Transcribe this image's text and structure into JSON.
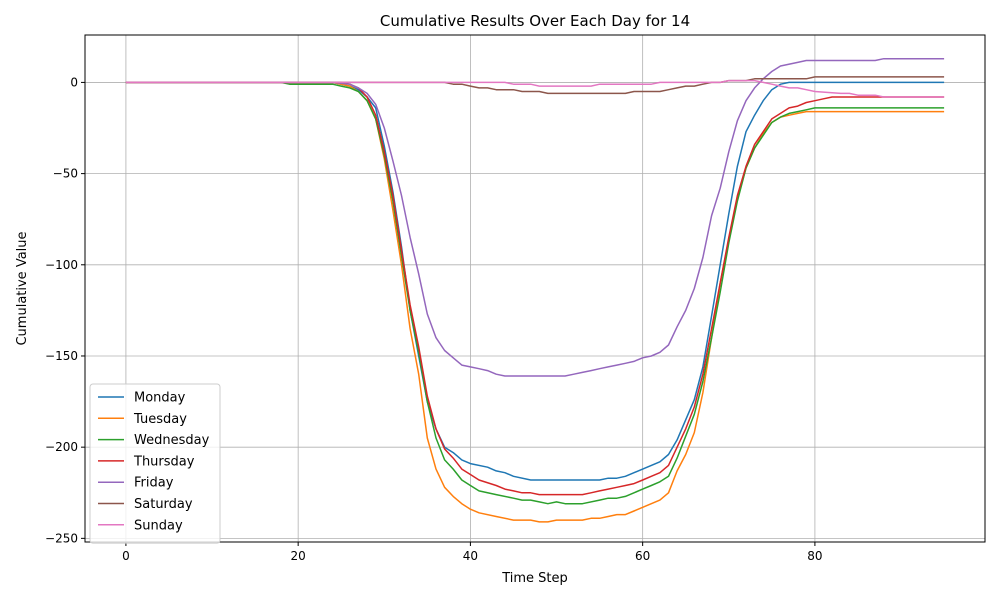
{
  "chart_data": {
    "type": "line",
    "title": "Cumulative Results Over Each Day for 14",
    "xlabel": "Time Step",
    "ylabel": "Cumulative Value",
    "xlim": [
      -4.75,
      99.75
    ],
    "ylim": [
      -252,
      26
    ],
    "xticks": [
      0,
      20,
      40,
      60,
      80
    ],
    "yticks": [
      0,
      -50,
      -100,
      -150,
      -200,
      -250
    ],
    "grid": true,
    "legend_position": "lower-left",
    "series": [
      {
        "name": "Monday",
        "color": "#1f77b4",
        "points": [
          [
            0,
            0
          ],
          [
            18,
            0
          ],
          [
            24,
            0
          ],
          [
            26,
            -2
          ],
          [
            27,
            -4
          ],
          [
            28,
            -8
          ],
          [
            29,
            -14
          ],
          [
            30,
            -35
          ],
          [
            31,
            -60
          ],
          [
            32,
            -90
          ],
          [
            33,
            -125
          ],
          [
            34,
            -150
          ],
          [
            35,
            -175
          ],
          [
            36,
            -190
          ],
          [
            37,
            -200
          ],
          [
            38,
            -203
          ],
          [
            39,
            -207
          ],
          [
            40,
            -209
          ],
          [
            42,
            -211
          ],
          [
            43,
            -213
          ],
          [
            44,
            -214
          ],
          [
            45,
            -216
          ],
          [
            47,
            -218
          ],
          [
            55,
            -218
          ],
          [
            56,
            -217
          ],
          [
            57,
            -217
          ],
          [
            58,
            -216
          ],
          [
            59,
            -214
          ],
          [
            60,
            -212
          ],
          [
            61,
            -210
          ],
          [
            62,
            -208
          ],
          [
            63,
            -204
          ],
          [
            64,
            -196
          ],
          [
            65,
            -185
          ],
          [
            66,
            -174
          ],
          [
            67,
            -156
          ],
          [
            68,
            -128
          ],
          [
            69,
            -100
          ],
          [
            70,
            -72
          ],
          [
            71,
            -46
          ],
          [
            72,
            -27
          ],
          [
            73,
            -18
          ],
          [
            74,
            -10
          ],
          [
            75,
            -4
          ],
          [
            76,
            -1
          ],
          [
            77,
            0
          ],
          [
            95,
            0
          ]
        ]
      },
      {
        "name": "Tuesday",
        "color": "#ff7f0e",
        "points": [
          [
            0,
            0
          ],
          [
            18,
            0
          ],
          [
            24,
            0
          ],
          [
            26,
            -2
          ],
          [
            27,
            -5
          ],
          [
            28,
            -10
          ],
          [
            29,
            -20
          ],
          [
            30,
            -42
          ],
          [
            31,
            -70
          ],
          [
            32,
            -100
          ],
          [
            33,
            -135
          ],
          [
            34,
            -160
          ],
          [
            35,
            -195
          ],
          [
            36,
            -212
          ],
          [
            37,
            -222
          ],
          [
            38,
            -227
          ],
          [
            39,
            -231
          ],
          [
            40,
            -234
          ],
          [
            41,
            -236
          ],
          [
            43,
            -238
          ],
          [
            45,
            -240
          ],
          [
            47,
            -240
          ],
          [
            48,
            -241
          ],
          [
            49,
            -241
          ],
          [
            50,
            -240
          ],
          [
            53,
            -240
          ],
          [
            54,
            -239
          ],
          [
            55,
            -239
          ],
          [
            56,
            -238
          ],
          [
            57,
            -237
          ],
          [
            58,
            -237
          ],
          [
            59,
            -235
          ],
          [
            60,
            -233
          ],
          [
            61,
            -231
          ],
          [
            62,
            -229
          ],
          [
            63,
            -225
          ],
          [
            64,
            -213
          ],
          [
            65,
            -204
          ],
          [
            66,
            -192
          ],
          [
            67,
            -170
          ],
          [
            68,
            -140
          ],
          [
            69,
            -110
          ],
          [
            70,
            -86
          ],
          [
            71,
            -64
          ],
          [
            72,
            -47
          ],
          [
            73,
            -36
          ],
          [
            74,
            -28
          ],
          [
            75,
            -22
          ],
          [
            76,
            -19
          ],
          [
            77,
            -18
          ],
          [
            78,
            -17
          ],
          [
            79,
            -16
          ],
          [
            95,
            -16
          ]
        ]
      },
      {
        "name": "Wednesday",
        "color": "#2ca02c",
        "points": [
          [
            0,
            0
          ],
          [
            18,
            0
          ],
          [
            19,
            -1
          ],
          [
            24,
            -1
          ],
          [
            25,
            -2
          ],
          [
            26,
            -3
          ],
          [
            27,
            -5
          ],
          [
            28,
            -10
          ],
          [
            29,
            -20
          ],
          [
            30,
            -40
          ],
          [
            31,
            -65
          ],
          [
            32,
            -95
          ],
          [
            33,
            -125
          ],
          [
            34,
            -148
          ],
          [
            35,
            -175
          ],
          [
            36,
            -195
          ],
          [
            37,
            -207
          ],
          [
            38,
            -212
          ],
          [
            39,
            -218
          ],
          [
            40,
            -221
          ],
          [
            41,
            -224
          ],
          [
            43,
            -226
          ],
          [
            45,
            -228
          ],
          [
            46,
            -229
          ],
          [
            47,
            -229
          ],
          [
            48,
            -230
          ],
          [
            49,
            -231
          ],
          [
            50,
            -230
          ],
          [
            51,
            -231
          ],
          [
            53,
            -231
          ],
          [
            55,
            -229
          ],
          [
            56,
            -228
          ],
          [
            57,
            -228
          ],
          [
            58,
            -227
          ],
          [
            59,
            -225
          ],
          [
            60,
            -223
          ],
          [
            61,
            -221
          ],
          [
            62,
            -219
          ],
          [
            63,
            -216
          ],
          [
            64,
            -206
          ],
          [
            65,
            -194
          ],
          [
            66,
            -182
          ],
          [
            67,
            -164
          ],
          [
            68,
            -140
          ],
          [
            69,
            -115
          ],
          [
            70,
            -88
          ],
          [
            71,
            -65
          ],
          [
            72,
            -47
          ],
          [
            73,
            -36
          ],
          [
            74,
            -29
          ],
          [
            75,
            -22
          ],
          [
            76,
            -19
          ],
          [
            77,
            -17
          ],
          [
            78,
            -16
          ],
          [
            79,
            -15
          ],
          [
            80,
            -14
          ],
          [
            95,
            -14
          ]
        ]
      },
      {
        "name": "Thursday",
        "color": "#d62728",
        "points": [
          [
            0,
            0
          ],
          [
            18,
            0
          ],
          [
            24,
            0
          ],
          [
            25,
            0
          ],
          [
            26,
            -1
          ],
          [
            27,
            -3
          ],
          [
            28,
            -8
          ],
          [
            29,
            -18
          ],
          [
            30,
            -38
          ],
          [
            31,
            -62
          ],
          [
            32,
            -92
          ],
          [
            33,
            -122
          ],
          [
            34,
            -145
          ],
          [
            35,
            -172
          ],
          [
            36,
            -190
          ],
          [
            37,
            -201
          ],
          [
            38,
            -206
          ],
          [
            39,
            -212
          ],
          [
            40,
            -215
          ],
          [
            41,
            -218
          ],
          [
            43,
            -221
          ],
          [
            44,
            -223
          ],
          [
            45,
            -224
          ],
          [
            46,
            -225
          ],
          [
            47,
            -225
          ],
          [
            48,
            -226
          ],
          [
            53,
            -226
          ],
          [
            54,
            -225
          ],
          [
            55,
            -224
          ],
          [
            56,
            -223
          ],
          [
            57,
            -222
          ],
          [
            58,
            -221
          ],
          [
            59,
            -220
          ],
          [
            60,
            -218
          ],
          [
            61,
            -216
          ],
          [
            62,
            -214
          ],
          [
            63,
            -210
          ],
          [
            64,
            -200
          ],
          [
            65,
            -190
          ],
          [
            66,
            -178
          ],
          [
            67,
            -160
          ],
          [
            68,
            -135
          ],
          [
            69,
            -110
          ],
          [
            70,
            -85
          ],
          [
            71,
            -62
          ],
          [
            72,
            -46
          ],
          [
            73,
            -34
          ],
          [
            74,
            -27
          ],
          [
            75,
            -20
          ],
          [
            76,
            -17
          ],
          [
            77,
            -14
          ],
          [
            78,
            -13
          ],
          [
            79,
            -11
          ],
          [
            80,
            -10
          ],
          [
            81,
            -9
          ],
          [
            82,
            -8
          ],
          [
            95,
            -8
          ]
        ]
      },
      {
        "name": "Friday",
        "color": "#9467bd",
        "points": [
          [
            0,
            0
          ],
          [
            18,
            0
          ],
          [
            24,
            0
          ],
          [
            26,
            -1
          ],
          [
            27,
            -3
          ],
          [
            28,
            -6
          ],
          [
            29,
            -12
          ],
          [
            30,
            -25
          ],
          [
            31,
            -43
          ],
          [
            32,
            -62
          ],
          [
            33,
            -85
          ],
          [
            34,
            -105
          ],
          [
            35,
            -127
          ],
          [
            36,
            -140
          ],
          [
            37,
            -147
          ],
          [
            38,
            -151
          ],
          [
            39,
            -155
          ],
          [
            40,
            -156
          ],
          [
            41,
            -157
          ],
          [
            42,
            -158
          ],
          [
            43,
            -160
          ],
          [
            44,
            -161
          ],
          [
            51,
            -161
          ],
          [
            52,
            -160
          ],
          [
            53,
            -159
          ],
          [
            54,
            -158
          ],
          [
            55,
            -157
          ],
          [
            56,
            -156
          ],
          [
            57,
            -155
          ],
          [
            58,
            -154
          ],
          [
            59,
            -153
          ],
          [
            60,
            -151
          ],
          [
            61,
            -150
          ],
          [
            62,
            -148
          ],
          [
            63,
            -144
          ],
          [
            64,
            -134
          ],
          [
            65,
            -125
          ],
          [
            66,
            -113
          ],
          [
            67,
            -96
          ],
          [
            68,
            -73
          ],
          [
            69,
            -58
          ],
          [
            70,
            -38
          ],
          [
            71,
            -21
          ],
          [
            72,
            -10
          ],
          [
            73,
            -3
          ],
          [
            74,
            2
          ],
          [
            75,
            6
          ],
          [
            76,
            9
          ],
          [
            78,
            11
          ],
          [
            79,
            12
          ],
          [
            87,
            12
          ],
          [
            88,
            13
          ],
          [
            95,
            13
          ]
        ]
      },
      {
        "name": "Saturday",
        "color": "#8c564b",
        "points": [
          [
            0,
            0
          ],
          [
            37,
            0
          ],
          [
            38,
            -1
          ],
          [
            39,
            -1
          ],
          [
            40,
            -2
          ],
          [
            41,
            -3
          ],
          [
            42,
            -3
          ],
          [
            43,
            -4
          ],
          [
            45,
            -4
          ],
          [
            46,
            -5
          ],
          [
            48,
            -5
          ],
          [
            49,
            -6
          ],
          [
            58,
            -6
          ],
          [
            59,
            -5
          ],
          [
            62,
            -5
          ],
          [
            63,
            -4
          ],
          [
            64,
            -3
          ],
          [
            65,
            -2
          ],
          [
            66,
            -2
          ],
          [
            67,
            -1
          ],
          [
            68,
            0
          ],
          [
            69,
            0
          ],
          [
            70,
            1
          ],
          [
            72,
            1
          ],
          [
            73,
            2
          ],
          [
            79,
            2
          ],
          [
            80,
            3
          ],
          [
            95,
            3
          ]
        ]
      },
      {
        "name": "Sunday",
        "color": "#e377c2",
        "points": [
          [
            0,
            0
          ],
          [
            44,
            0
          ],
          [
            45,
            -1
          ],
          [
            47,
            -1
          ],
          [
            48,
            -2
          ],
          [
            54,
            -2
          ],
          [
            55,
            -1
          ],
          [
            61,
            -1
          ],
          [
            62,
            0
          ],
          [
            69,
            0
          ],
          [
            70,
            1
          ],
          [
            73,
            1
          ],
          [
            74,
            0
          ],
          [
            75,
            -1
          ],
          [
            76,
            -2
          ],
          [
            77,
            -3
          ],
          [
            78,
            -3
          ],
          [
            79,
            -4
          ],
          [
            80,
            -5
          ],
          [
            83,
            -6
          ],
          [
            84,
            -6
          ],
          [
            85,
            -7
          ],
          [
            87,
            -7
          ],
          [
            88,
            -8
          ],
          [
            95,
            -8
          ]
        ]
      }
    ]
  }
}
